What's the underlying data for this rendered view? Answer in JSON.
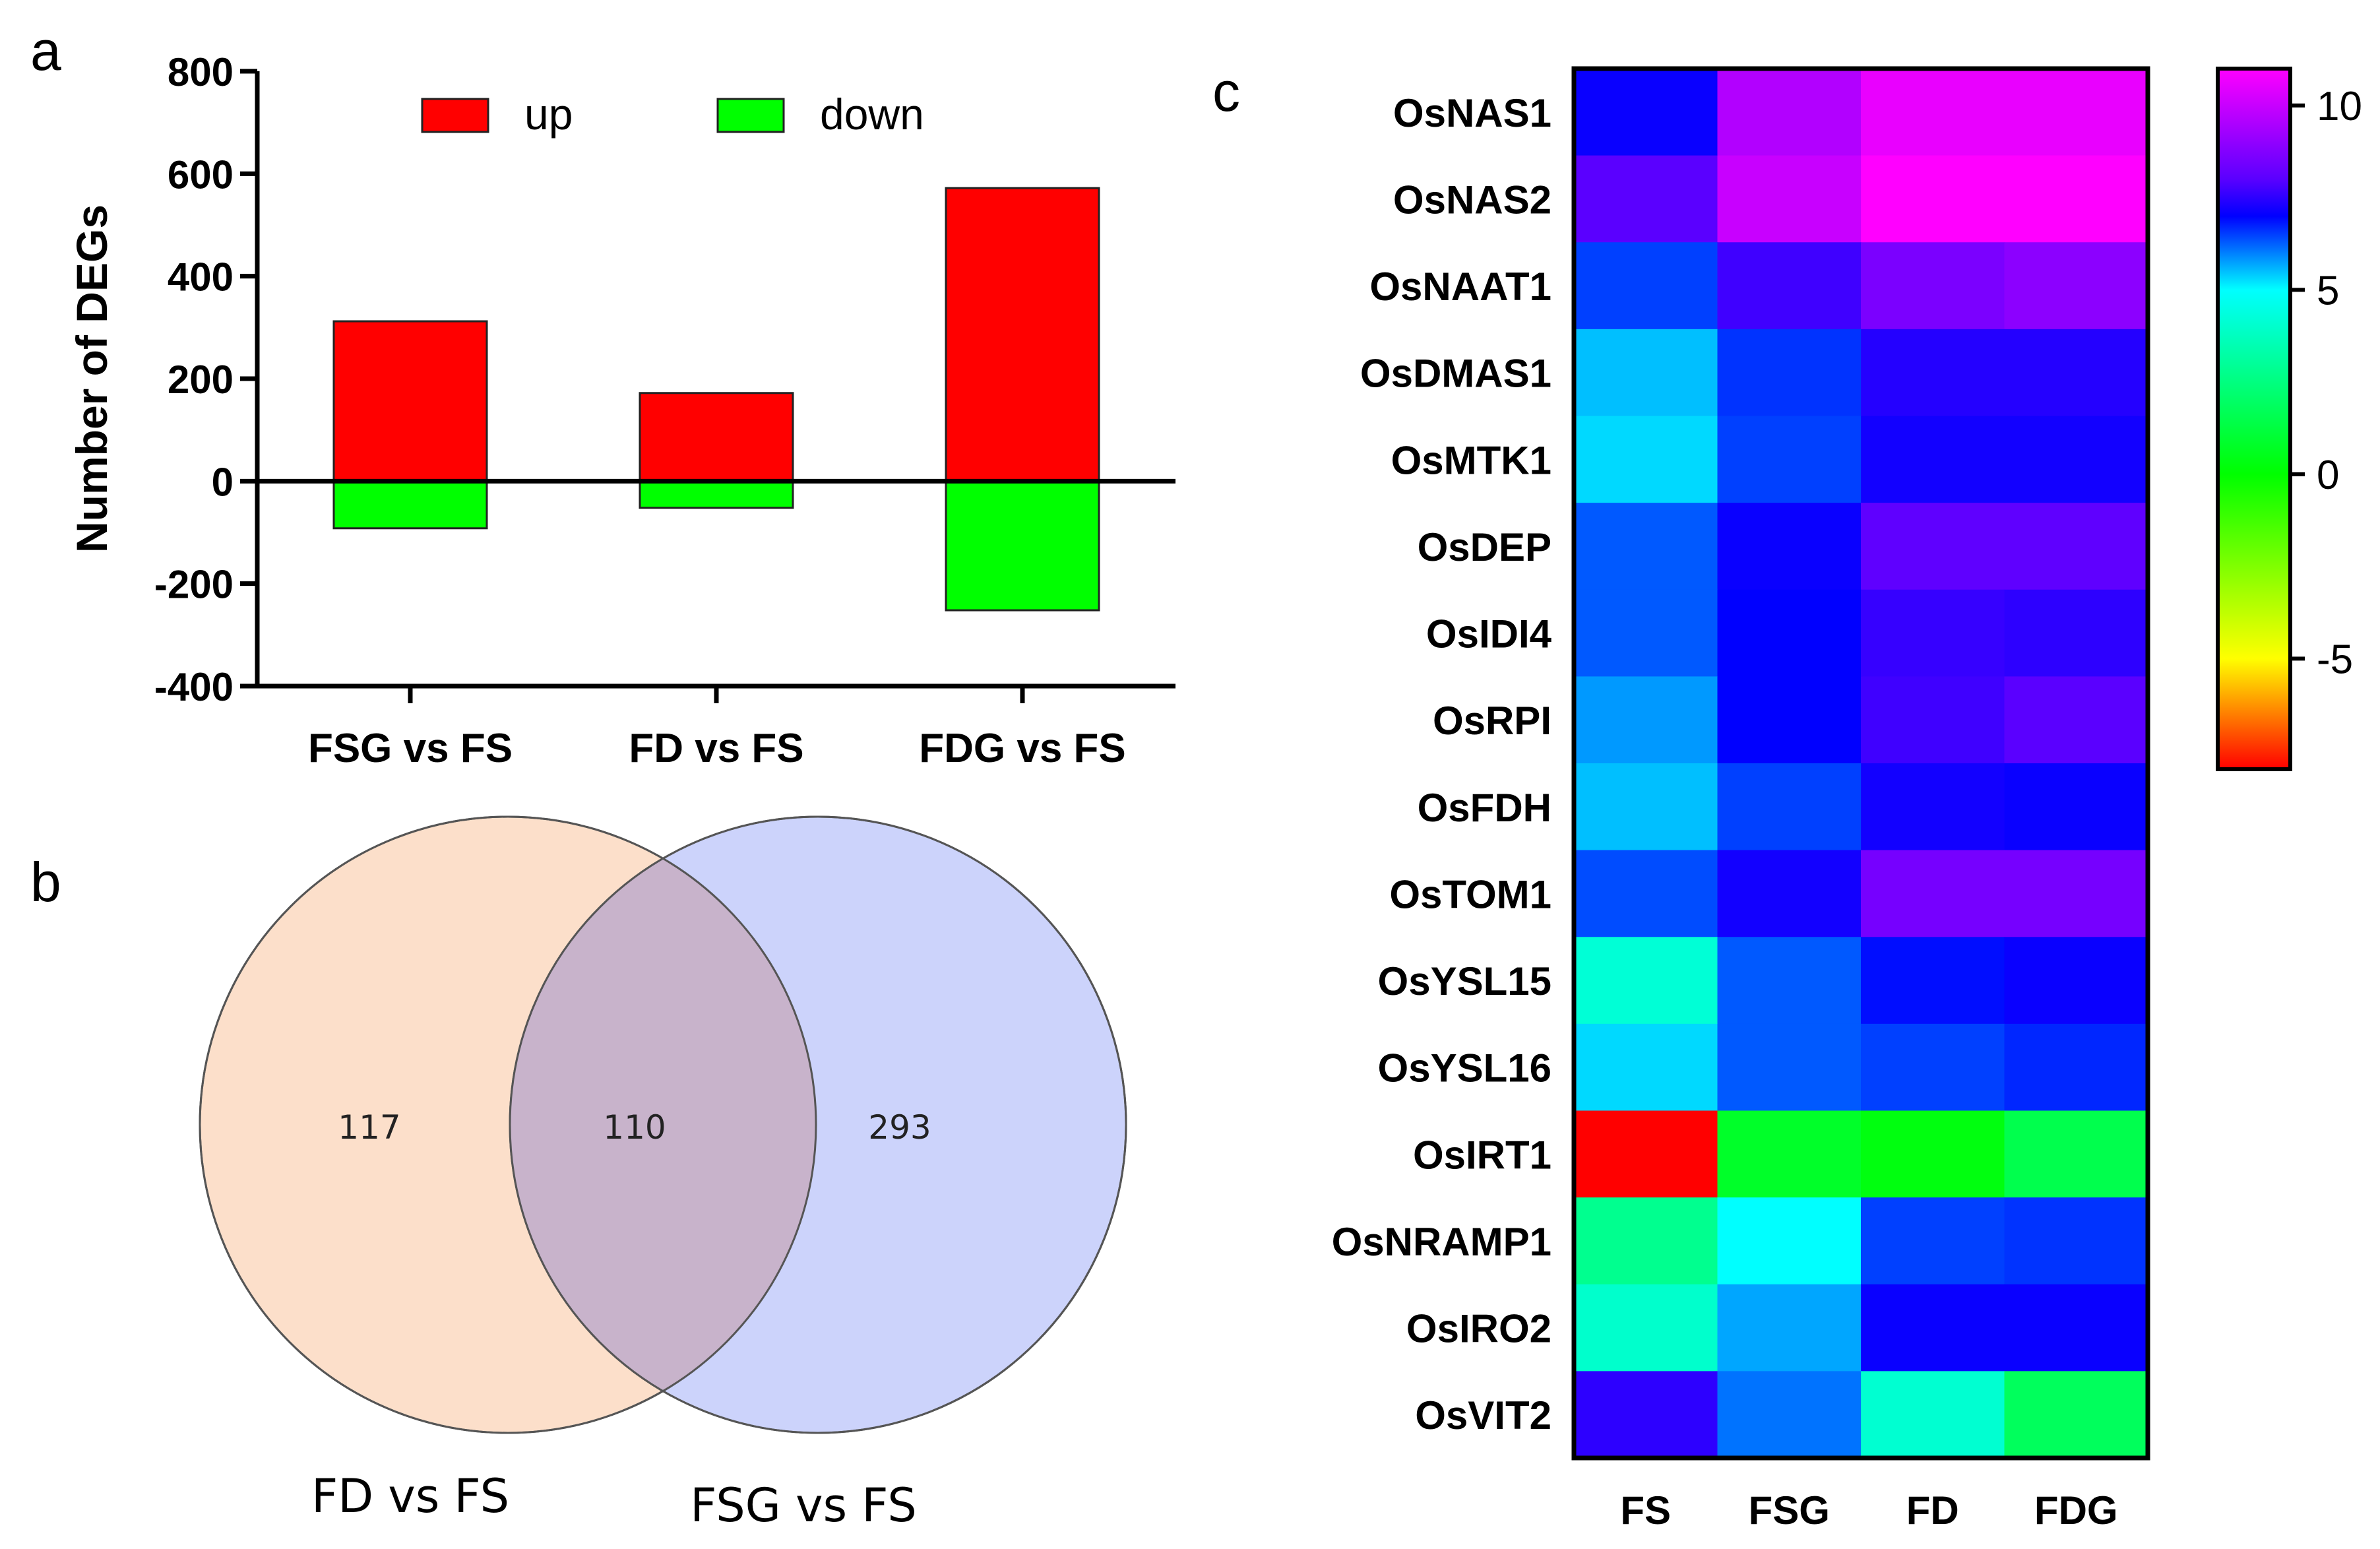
{
  "panels": {
    "a": "a",
    "b": "b",
    "c": "c"
  },
  "chart_data": [
    {
      "type": "bar",
      "panel": "a",
      "categories": [
        "FSG vs FS",
        "FD vs FS",
        "FDG vs FS"
      ],
      "series": [
        {
          "name": "up",
          "values": [
            312,
            172,
            572
          ],
          "color": "#ff0000"
        },
        {
          "name": "down",
          "values": [
            -92,
            -52,
            -252
          ],
          "color": "#00ff00"
        }
      ],
      "ylabel": "Number of DEGs",
      "ylim": [
        -400,
        800
      ],
      "yticks": [
        800,
        600,
        400,
        200,
        0,
        -200,
        -400
      ],
      "ytick_labels": [
        "800",
        "600",
        "400",
        "200",
        "0",
        "-200",
        "-400"
      ],
      "legend": "top-center"
    },
    {
      "type": "venn",
      "panel": "b",
      "sets": [
        {
          "name": "FD vs FS",
          "only": 117,
          "color": "#fcdfca"
        },
        {
          "name": "FSG vs FS",
          "only": 293,
          "color": "#ccd3fb"
        }
      ],
      "overlap": 110,
      "overlap_label": "110",
      "only_labels": [
        "117",
        "293"
      ],
      "overlap_color": "#c8b3cb"
    },
    {
      "type": "heatmap",
      "panel": "c",
      "columns": [
        "FS",
        "FSG",
        "FD",
        "FDG"
      ],
      "rows": [
        "OsNAS1",
        "OsNAS2",
        "OsNAAT1",
        "OsDMAS1",
        "OsMTK1",
        "OsDEP",
        "OsIDI4",
        "OsRPI",
        "OsFDH",
        "OsTOM1",
        "OsYSL15",
        "OsYSL16",
        "OsIRT1",
        "OsNRAMP1",
        "OsIRO2",
        "OsVIT2"
      ],
      "values": [
        [
          7.1,
          9.6,
          10.6,
          10.6
        ],
        [
          8.0,
          10.0,
          11.0,
          11.0
        ],
        [
          6.5,
          7.7,
          8.6,
          8.9
        ],
        [
          5.5,
          6.6,
          7.4,
          7.4
        ],
        [
          5.3,
          6.5,
          7.2,
          7.2
        ],
        [
          6.3,
          7.1,
          8.1,
          8.1
        ],
        [
          6.3,
          7.0,
          7.6,
          7.5
        ],
        [
          5.8,
          7.0,
          7.7,
          8.0
        ],
        [
          5.5,
          6.5,
          7.2,
          7.1
        ],
        [
          6.4,
          7.2,
          8.5,
          8.5
        ],
        [
          4.2,
          6.3,
          6.9,
          7.1
        ],
        [
          5.3,
          6.3,
          6.5,
          6.7
        ],
        [
          -8.0,
          0.8,
          0.3,
          1.5
        ],
        [
          2.8,
          5.0,
          6.5,
          6.6
        ],
        [
          4.0,
          5.7,
          7.1,
          7.1
        ],
        [
          7.5,
          6.1,
          4.1,
          1.8
        ]
      ],
      "colorbar": {
        "ticks": [
          10,
          5,
          0,
          -5
        ],
        "tick_labels": [
          "10",
          "5",
          "0",
          "-5"
        ],
        "range": [
          -8,
          11
        ],
        "stops": [
          {
            "v": 11,
            "c": "#ff00ff"
          },
          {
            "v": 8,
            "c": "#5a00ff"
          },
          {
            "v": 7,
            "c": "#0000ff"
          },
          {
            "v": 5,
            "c": "#00ffff"
          },
          {
            "v": 0,
            "c": "#00ff00"
          },
          {
            "v": -5,
            "c": "#ffff00"
          },
          {
            "v": -8,
            "c": "#ff0000"
          }
        ]
      }
    }
  ]
}
